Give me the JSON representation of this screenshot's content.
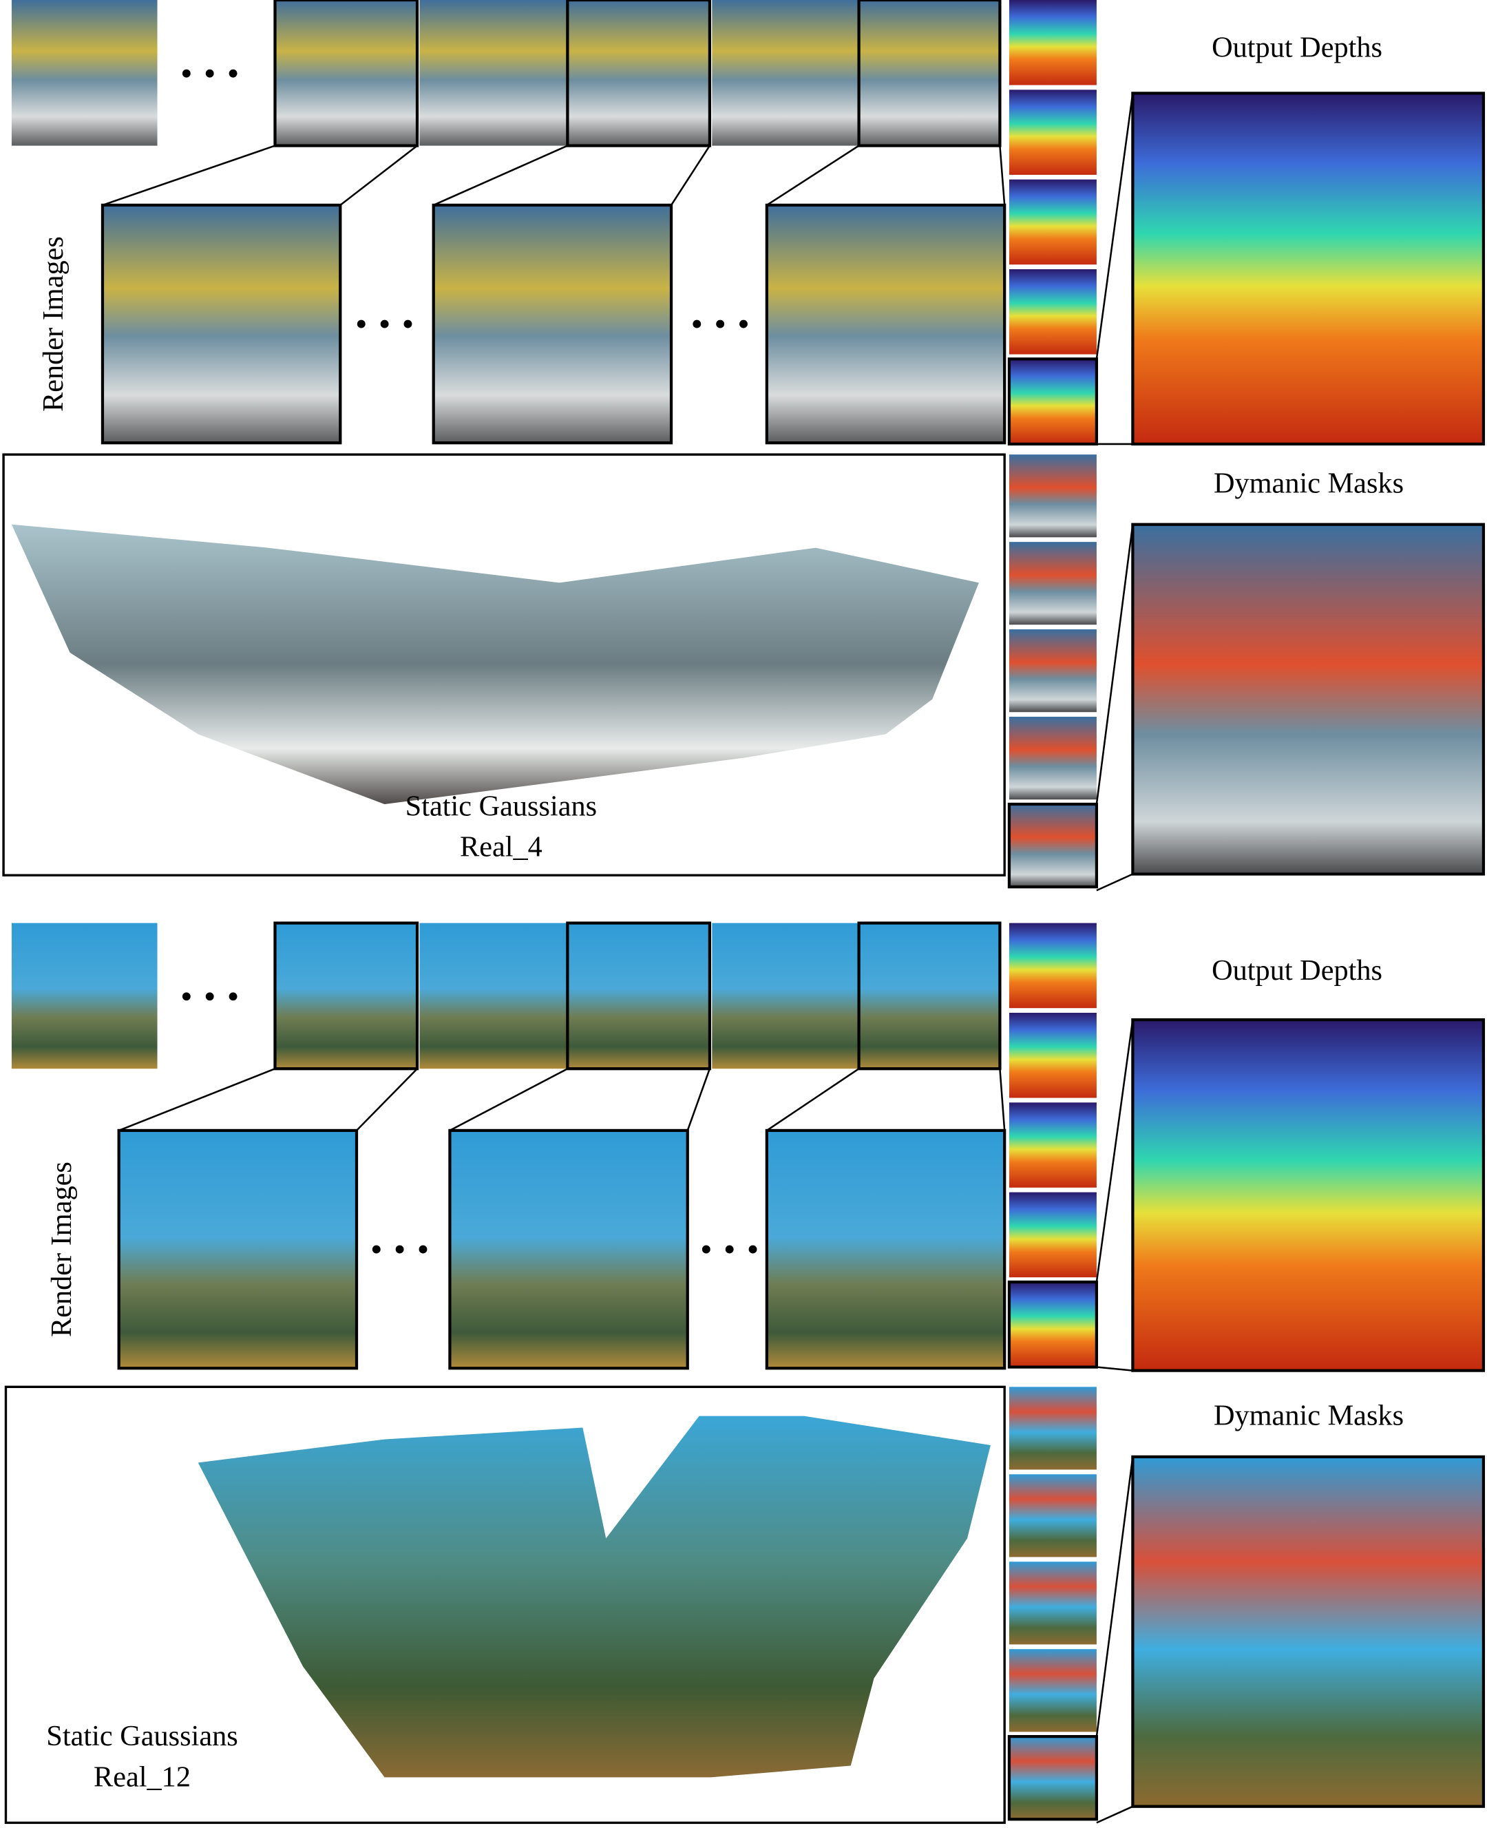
{
  "panels": [
    {
      "render_label": "Render Images",
      "depth_title": "Output Depths",
      "mask_title": "Dymanic Masks",
      "static_title": "Static Gaussians",
      "scene": "Real_4"
    },
    {
      "render_label": "Render Images",
      "depth_title": "Output Depths",
      "mask_title": "Dymanic Masks",
      "static_title": "Static Gaussians",
      "scene": "Real_12"
    }
  ]
}
